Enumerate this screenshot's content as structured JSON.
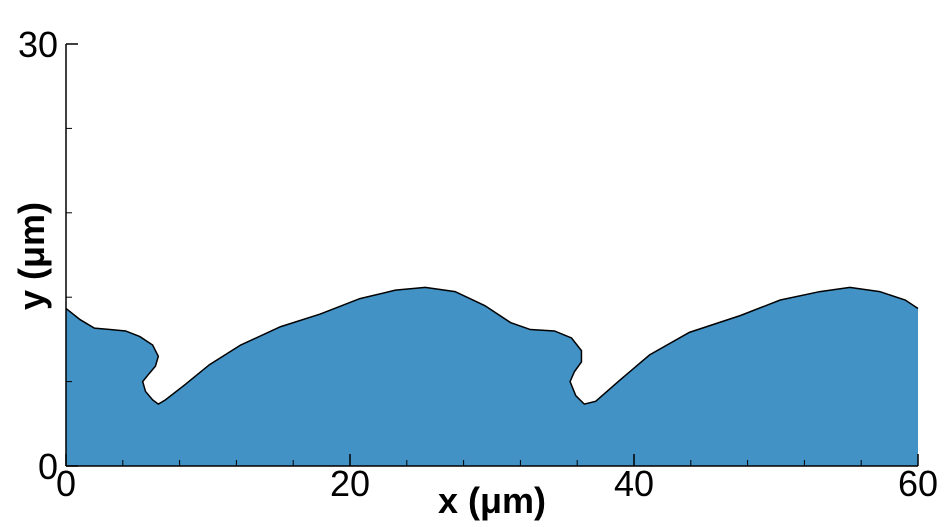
{
  "chart_data": {
    "type": "area",
    "xlabel": "x (μm)",
    "ylabel": "y (μm)",
    "x": [
      0,
      1.0,
      2.0,
      3.1,
      4.2,
      5.2,
      6.1,
      6.5,
      6.3,
      5.8,
      5.4,
      5.6,
      6.1,
      6.5,
      7.0,
      8.4,
      10.1,
      12.3,
      15.1,
      17.9,
      20.7,
      23.2,
      25.3,
      27.4,
      29.5,
      31.3,
      32.7,
      34.4,
      35.6,
      36.3,
      36.3,
      35.8,
      35.5,
      35.9,
      36.5,
      37.3,
      39.0,
      41.1,
      43.9,
      47.5,
      50.3,
      53.1,
      55.2,
      57.3,
      59.1,
      60
    ],
    "values": [
      11.2,
      10.4,
      9.8,
      9.7,
      9.6,
      9.2,
      8.6,
      7.8,
      7.1,
      6.5,
      6.0,
      5.3,
      4.7,
      4.4,
      4.7,
      5.8,
      7.2,
      8.6,
      9.9,
      10.8,
      11.9,
      12.5,
      12.7,
      12.4,
      11.4,
      10.2,
      9.7,
      9.6,
      9.1,
      8.2,
      7.4,
      6.7,
      6.0,
      5.0,
      4.4,
      4.6,
      6.1,
      7.9,
      9.5,
      10.7,
      11.8,
      12.4,
      12.7,
      12.4,
      11.8,
      11.2
    ],
    "color": "#4292c6",
    "xlim": [
      0,
      60
    ],
    "xticks": [
      0,
      20,
      40,
      60
    ],
    "xminorticks": [
      4,
      8,
      12,
      16,
      24,
      28,
      32,
      36,
      44,
      48,
      52,
      56
    ],
    "ylim": [
      0,
      30
    ],
    "yticks": [
      0,
      30
    ],
    "yminorticks": [
      6,
      12,
      18,
      24
    ]
  }
}
